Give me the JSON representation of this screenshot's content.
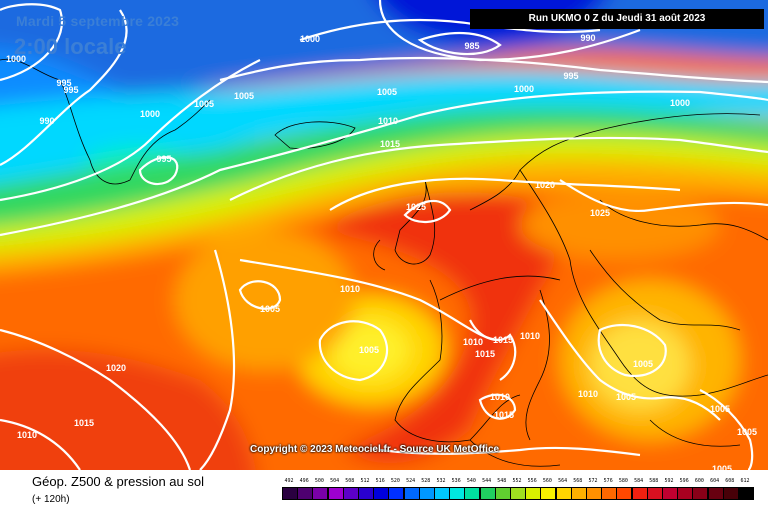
{
  "header": {
    "date": "Mardi 5 septembre 2023",
    "local_time": "2:00 locale",
    "run_info": "Run UKMO 0 Z du Jeudi 31 août 2023"
  },
  "copyright": "Copyright © 2023 Meteociel.fr - Source UK MetOffice",
  "footer": {
    "title": "Géop. Z500 & pression au sol",
    "subtitle": "(+ 120h)"
  },
  "scale": {
    "labels": [
      "492",
      "496",
      "500",
      "504",
      "508",
      "512",
      "516",
      "520",
      "524",
      "528",
      "532",
      "536",
      "540",
      "544",
      "548",
      "552",
      "556",
      "560",
      "564",
      "568",
      "572",
      "576",
      "580",
      "584",
      "588",
      "592",
      "596",
      "600",
      "604",
      "608",
      "612"
    ],
    "colors": [
      "#2a0040",
      "#4e0070",
      "#7a00a8",
      "#9e00d0",
      "#5c00c8",
      "#2a00d0",
      "#0000dc",
      "#0030ff",
      "#0068ff",
      "#0098ff",
      "#00c8ff",
      "#00e8e0",
      "#00e0a0",
      "#20d060",
      "#60d030",
      "#a0e020",
      "#d8f000",
      "#f8f000",
      "#ffd400",
      "#ffb000",
      "#ff9000",
      "#ff6800",
      "#ff4800",
      "#f02010",
      "#d81020",
      "#c00030",
      "#a80020",
      "#880018",
      "#680010",
      "#480008",
      "#000000"
    ]
  },
  "isobars": [
    "1000",
    "995",
    "995",
    "990",
    "1000",
    "1005",
    "1005",
    "1000",
    "995",
    "1005",
    "1010",
    "1015",
    "985",
    "990",
    "995",
    "1000",
    "1000",
    "1025",
    "1020",
    "1025",
    "1010",
    "1005",
    "1005",
    "1010",
    "1015",
    "1015",
    "1020",
    "1010",
    "1015",
    "1005",
    "1010",
    "1005",
    "1005",
    "1010",
    "1015",
    "1005",
    "1005",
    "1010"
  ],
  "colors": {
    "title_text": "#3b7fd6",
    "isobar_line": "#ffffff",
    "coastline": "#000000",
    "run_box": "#000000"
  }
}
